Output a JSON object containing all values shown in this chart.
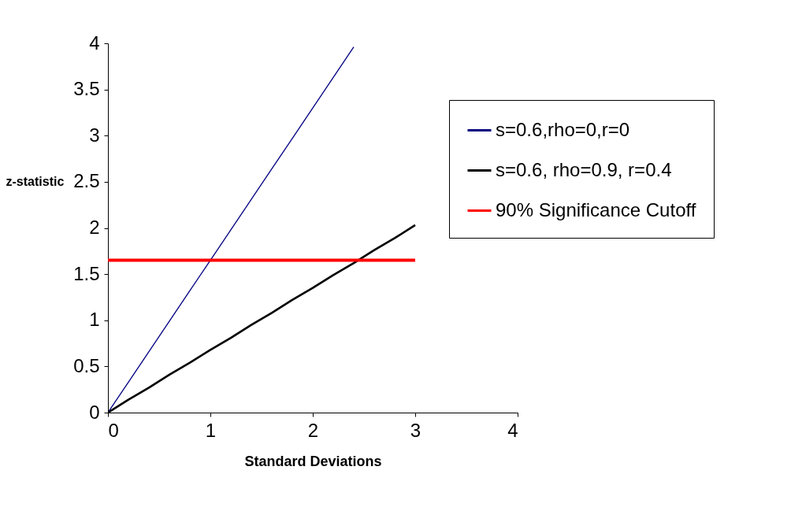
{
  "chart_data": {
    "type": "line",
    "xlabel": "Standard Deviations",
    "ylabel": "z-statistic",
    "x": [
      0,
      0.2,
      0.4,
      0.6,
      0.8,
      1.0,
      1.2,
      1.4,
      1.6,
      1.8,
      2.0,
      2.2,
      2.4,
      2.6,
      2.8,
      3.0
    ],
    "series": [
      {
        "name": "s=0.6,rho=0,r=0",
        "color": "#000080",
        "values": [
          0,
          0.33,
          0.66,
          0.99,
          1.32,
          1.65,
          1.98,
          2.31,
          2.64,
          2.97,
          3.3,
          3.63,
          3.96,
          null,
          null,
          null
        ]
      },
      {
        "name": "s=0.6, rho=0.9, r=0.4",
        "color": "#000000",
        "values": [
          0,
          0.14,
          0.27,
          0.41,
          0.54,
          0.68,
          0.81,
          0.95,
          1.08,
          1.22,
          1.35,
          1.49,
          1.62,
          1.76,
          1.89,
          2.03
        ]
      },
      {
        "name": "90% Significance Cutoff",
        "color": "#ff0000",
        "values": [
          1.65,
          1.65,
          1.65,
          1.65,
          1.65,
          1.65,
          1.65,
          1.65,
          1.65,
          1.65,
          1.65,
          1.65,
          1.65,
          1.65,
          1.65,
          1.65
        ]
      }
    ],
    "xlim": [
      0,
      4
    ],
    "xticks": [
      0,
      1,
      2,
      3,
      4
    ],
    "ylim": [
      0,
      4
    ],
    "yticks": [
      0,
      0.5,
      1,
      1.5,
      2,
      2.5,
      3,
      3.5,
      4
    ],
    "legend": "right",
    "grid": false,
    "marker": "none",
    "line_style": "solid"
  }
}
